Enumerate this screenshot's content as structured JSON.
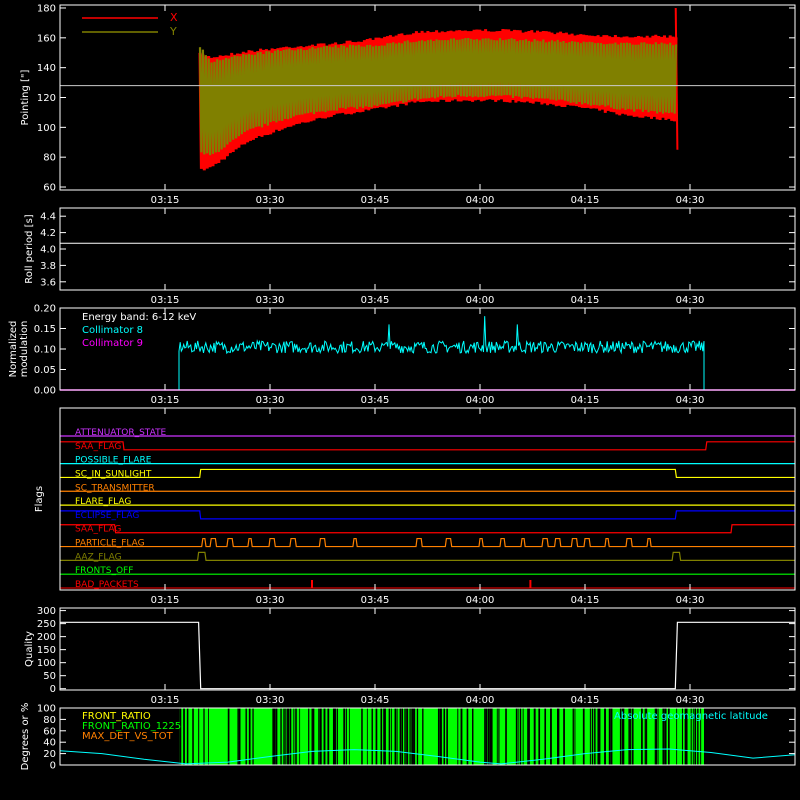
{
  "chart_data": [
    {
      "id": "pointing",
      "type": "line",
      "ylabel": "Pointing [\"]",
      "ylim": [
        58,
        182
      ],
      "yticks": [
        60,
        80,
        100,
        120,
        140,
        160,
        180
      ],
      "xlim_hours": [
        3.0,
        4.75
      ],
      "xticks": [
        "03:15",
        "03:30",
        "03:45",
        "04:00",
        "04:15",
        "04:30"
      ],
      "reference_line": 128,
      "legend_position": "top-left",
      "series": [
        {
          "name": "X",
          "color": "#ff0000",
          "time_span": [
            "03:20",
            "04:28"
          ],
          "upper_envelope": [
            [
              3.333,
              150
            ],
            [
              3.36,
              148
            ],
            [
              3.45,
              152
            ],
            [
              3.55,
              155
            ],
            [
              3.65,
              157
            ],
            [
              3.75,
              160
            ],
            [
              3.85,
              165
            ],
            [
              3.95,
              166
            ],
            [
              4.05,
              166
            ],
            [
              4.15,
              165
            ],
            [
              4.25,
              163
            ],
            [
              4.35,
              162
            ],
            [
              4.46,
              162
            ]
          ],
          "lower_envelope": [
            [
              3.333,
              70
            ],
            [
              3.36,
              72
            ],
            [
              3.45,
              90
            ],
            [
              3.55,
              100
            ],
            [
              3.65,
              107
            ],
            [
              3.75,
              111
            ],
            [
              3.85,
              116
            ],
            [
              3.95,
              117
            ],
            [
              4.05,
              117
            ],
            [
              4.15,
              115
            ],
            [
              4.25,
              112
            ],
            [
              4.35,
              107
            ],
            [
              4.46,
              104
            ]
          ],
          "end_spike": [
            [
              4.466,
              180
            ],
            [
              4.47,
              85
            ]
          ]
        },
        {
          "name": "Y",
          "color": "#808000",
          "time_span": [
            "03:20",
            "04:28"
          ],
          "upper_envelope": [
            [
              3.333,
              155
            ],
            [
              3.36,
              145
            ],
            [
              3.45,
              150
            ],
            [
              3.55,
              153
            ],
            [
              3.65,
              155
            ],
            [
              3.75,
              156
            ],
            [
              3.85,
              159
            ],
            [
              3.95,
              160
            ],
            [
              4.05,
              160
            ],
            [
              4.15,
              159
            ],
            [
              4.25,
              158
            ],
            [
              4.35,
              157
            ],
            [
              4.46,
              157
            ]
          ],
          "lower_envelope": [
            [
              3.333,
              82
            ],
            [
              3.36,
              80
            ],
            [
              3.45,
              97
            ],
            [
              3.55,
              106
            ],
            [
              3.65,
              111
            ],
            [
              3.75,
              113
            ],
            [
              3.85,
              118
            ],
            [
              3.95,
              120
            ],
            [
              4.05,
              120
            ],
            [
              4.15,
              118
            ],
            [
              4.25,
              115
            ],
            [
              4.35,
              111
            ],
            [
              4.46,
              108
            ]
          ]
        }
      ]
    },
    {
      "id": "roll",
      "type": "line",
      "ylabel": "Roll period [s]",
      "ylim": [
        3.5,
        4.5
      ],
      "yticks": [
        "3.6",
        "3.8",
        "4.0",
        "4.2",
        "4.4"
      ],
      "ytick_values": [
        3.6,
        3.8,
        4.0,
        4.2,
        4.4
      ],
      "xticks": [
        "03:15",
        "03:30",
        "03:45",
        "04:00",
        "04:15",
        "04:30"
      ],
      "series": [
        {
          "name": "",
          "color": "#ffffff",
          "values": [
            [
              3.0,
              4.07
            ],
            [
              4.75,
              4.07
            ]
          ]
        }
      ]
    },
    {
      "id": "modulation",
      "type": "line",
      "ylabel": "Normalized modulation",
      "ylim": [
        0.0,
        0.2
      ],
      "yticks": [
        "0.00",
        "0.05",
        "0.10",
        "0.15",
        "0.20"
      ],
      "ytick_values": [
        0.0,
        0.05,
        0.1,
        0.15,
        0.2
      ],
      "xticks": [
        "03:15",
        "03:30",
        "03:45",
        "04:00",
        "04:15",
        "04:30"
      ],
      "legend_position": "top-left",
      "energy_band": "Energy band: 6-12 keV",
      "series": [
        {
          "name": "Collimator 8",
          "color": "#00ffff",
          "time_span": [
            "03:17",
            "04:32"
          ],
          "mean": 0.105,
          "spread": 0.015,
          "max": 0.18
        },
        {
          "name": "Collimator 9",
          "color": "#ff00ff",
          "values": [
            [
              3.0,
              0.0
            ],
            [
              4.75,
              0.0
            ]
          ]
        }
      ]
    },
    {
      "id": "flags",
      "type": "line",
      "ylabel": "Flags",
      "xticks": [
        "03:15",
        "03:30",
        "03:45",
        "04:00",
        "04:15",
        "04:30"
      ],
      "flags": [
        {
          "name": "ATTENUATOR_STATE",
          "color": "#cc33ff",
          "high": []
        },
        {
          "name": "SAA_FLAG",
          "color": "#ff0000",
          "high": [
            [
              3.0,
              3.15
            ],
            [
              4.54,
              4.75
            ]
          ]
        },
        {
          "name": "POSSIBLE_FLARE",
          "color": "#00ffff",
          "high": []
        },
        {
          "name": "SC_IN_SUNLIGHT",
          "color": "#ffff00",
          "high": [
            [
              3.333,
              4.466
            ]
          ]
        },
        {
          "name": "SC_TRANSMITTER",
          "color": "#ff8000",
          "high": []
        },
        {
          "name": "FLARE_FLAG",
          "color": "#ffff00",
          "high": []
        },
        {
          "name": "ECLIPSE_FLAG",
          "color": "#0000ff",
          "high": [
            [
              3.0,
              3.333
            ],
            [
              4.466,
              4.75
            ]
          ]
        },
        {
          "name": "SAA_FLAG",
          "color": "#ff0000",
          "high": [
            [
              3.0,
              3.13
            ],
            [
              4.6,
              4.75
            ]
          ]
        },
        {
          "name": "PARTICLE_FLAG",
          "color": "#ff8000",
          "high": [
            [
              3.34,
              3.345
            ],
            [
              3.36,
              3.37
            ],
            [
              3.4,
              3.41
            ],
            [
              3.45,
              3.455
            ],
            [
              3.5,
              3.51
            ],
            [
              3.55,
              3.56
            ],
            [
              3.62,
              3.63
            ],
            [
              3.7,
              3.705
            ],
            [
              3.85,
              3.86
            ],
            [
              3.92,
              3.93
            ],
            [
              4.0,
              4.005
            ],
            [
              4.05,
              4.06
            ],
            [
              4.1,
              4.105
            ],
            [
              4.15,
              4.16
            ],
            [
              4.18,
              4.19
            ],
            [
              4.22,
              4.23
            ],
            [
              4.25,
              4.26
            ],
            [
              4.3,
              4.305
            ],
            [
              4.35,
              4.36
            ],
            [
              4.4,
              4.405
            ]
          ]
        },
        {
          "name": "AAZ_FLAG",
          "color": "#808000",
          "high": [
            [
              3.33,
              3.345
            ],
            [
              4.46,
              4.475
            ]
          ]
        },
        {
          "name": "FRONTS_OFF",
          "color": "#00ff00",
          "high": []
        },
        {
          "name": "BAD_PACKETS",
          "color": "#ff0000",
          "spikes": [
            3.6,
            4.12
          ]
        }
      ]
    },
    {
      "id": "quality",
      "type": "line",
      "ylabel": "Quality",
      "ylim": [
        -5,
        310
      ],
      "yticks": [
        0,
        50,
        100,
        150,
        200,
        250,
        300
      ],
      "xticks": [
        "03:15",
        "03:30",
        "03:45",
        "04:00",
        "04:15",
        "04:30"
      ],
      "series": [
        {
          "name": "",
          "color": "#ffffff",
          "values": [
            [
              3.0,
              255
            ],
            [
              3.33,
              255
            ],
            [
              3.335,
              0
            ],
            [
              4.465,
              0
            ],
            [
              4.47,
              255
            ],
            [
              4.75,
              255
            ]
          ]
        }
      ]
    },
    {
      "id": "degrees",
      "type": "area",
      "ylabel": "Degrees or %",
      "ylim": [
        0,
        100
      ],
      "yticks": [
        0,
        20,
        40,
        60,
        80,
        100
      ],
      "legend_position": "top-left",
      "series": [
        {
          "name": "FRONT_RATIO",
          "color": "#ffff00"
        },
        {
          "name": "FRONT_RATIO_1225",
          "color": "#00ff00",
          "time_span": [
            "03:17",
            "04:32"
          ],
          "value": 100
        },
        {
          "name": "MAX_DET_VS_TOT",
          "color": "#ff8000"
        },
        {
          "name": "Absolute geomagnetic latitude",
          "color": "#00ffff",
          "values": [
            [
              3.0,
              25
            ],
            [
              3.1,
              20
            ],
            [
              3.2,
              10
            ],
            [
              3.3,
              2
            ],
            [
              3.4,
              5
            ],
            [
              3.5,
              15
            ],
            [
              3.6,
              24
            ],
            [
              3.7,
              27
            ],
            [
              3.8,
              24
            ],
            [
              3.9,
              15
            ],
            [
              4.0,
              5
            ],
            [
              4.05,
              2
            ],
            [
              4.15,
              10
            ],
            [
              4.25,
              20
            ],
            [
              4.35,
              27
            ],
            [
              4.45,
              28
            ],
            [
              4.55,
              22
            ],
            [
              4.65,
              12
            ],
            [
              4.75,
              18
            ]
          ]
        }
      ]
    }
  ]
}
